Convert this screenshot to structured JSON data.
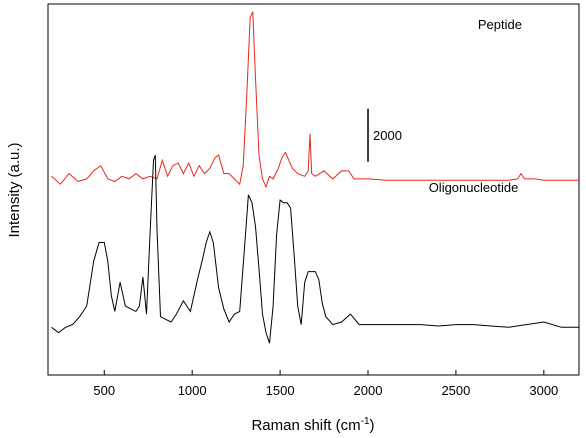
{
  "chart_data": {
    "type": "line",
    "xlabel": "Raman shift (cm",
    "xlabel_sup": "-1",
    "xlabel_suffix": ")",
    "ylabel": "Intensity (a.u.)",
    "xlim": [
      180,
      3200
    ],
    "ylim": [
      0,
      14000
    ],
    "x_ticks": [
      500,
      1000,
      1500,
      2000,
      2500,
      3000
    ],
    "x_tick_labels": [
      "500",
      "1000",
      "1500",
      "2000",
      "2500",
      "3000"
    ],
    "scale_bar": {
      "value": 2000,
      "label": "2000",
      "x": 2000,
      "y_bottom": 8050
    },
    "grid": false,
    "colors": {
      "peptide": "#e8281e",
      "oligonucleotide": "#000000",
      "axes": "#000000"
    },
    "series": [
      {
        "name": "Peptide",
        "label_position": {
          "x": 2750,
          "y": 13050
        },
        "x": [
          200,
          250,
          300,
          350,
          400,
          440,
          480,
          520,
          560,
          600,
          640,
          680,
          720,
          760,
          800,
          830,
          860,
          890,
          920,
          950,
          980,
          1010,
          1040,
          1070,
          1100,
          1130,
          1150,
          1180,
          1210,
          1240,
          1270,
          1290,
          1310,
          1330,
          1345,
          1360,
          1380,
          1400,
          1420,
          1440,
          1460,
          1490,
          1510,
          1530,
          1550,
          1570,
          1600,
          1640,
          1660,
          1670,
          1680,
          1700,
          1750,
          1800,
          1850,
          1890,
          1920,
          1960,
          2000,
          2100,
          2200,
          2300,
          2400,
          2500,
          2600,
          2700,
          2800,
          2850,
          2870,
          2890,
          2950,
          3000,
          3100,
          3200
        ],
        "values": [
          7500,
          7200,
          7600,
          7300,
          7400,
          7700,
          7900,
          7400,
          7300,
          7500,
          7400,
          7600,
          7400,
          7500,
          7400,
          8100,
          7500,
          7900,
          8000,
          7600,
          8000,
          7500,
          7900,
          7600,
          7800,
          8200,
          8300,
          7600,
          7600,
          7400,
          7200,
          7900,
          10500,
          13500,
          13700,
          11200,
          8300,
          7400,
          7100,
          7500,
          7400,
          7800,
          8200,
          8400,
          8100,
          7800,
          7600,
          7500,
          7700,
          9100,
          7600,
          7500,
          7700,
          7400,
          7700,
          7700,
          7400,
          7400,
          7400,
          7350,
          7350,
          7350,
          7350,
          7350,
          7350,
          7350,
          7350,
          7400,
          7600,
          7400,
          7400,
          7350,
          7350,
          7350
        ]
      },
      {
        "name": "Oligonucleotide",
        "label_position": {
          "x": 2600,
          "y": 6900
        },
        "x": [
          200,
          240,
          280,
          320,
          360,
          400,
          440,
          470,
          500,
          520,
          540,
          560,
          590,
          620,
          650,
          680,
          700,
          720,
          740,
          760,
          780,
          790,
          800,
          820,
          850,
          880,
          910,
          950,
          990,
          1030,
          1060,
          1080,
          1100,
          1120,
          1150,
          1180,
          1210,
          1240,
          1270,
          1300,
          1320,
          1340,
          1360,
          1380,
          1400,
          1420,
          1440,
          1460,
          1480,
          1500,
          1520,
          1540,
          1560,
          1580,
          1600,
          1620,
          1640,
          1660,
          1680,
          1700,
          1720,
          1740,
          1760,
          1800,
          1850,
          1900,
          1950,
          2000,
          2100,
          2200,
          2300,
          2400,
          2500,
          2600,
          2700,
          2800,
          2900,
          3000,
          3100,
          3200
        ],
        "values": [
          1800,
          1600,
          1800,
          1900,
          2200,
          2600,
          4300,
          5000,
          5000,
          4300,
          3000,
          2400,
          3500,
          2600,
          2500,
          2400,
          2600,
          3700,
          2300,
          5300,
          8100,
          8300,
          5500,
          2200,
          2100,
          2000,
          2300,
          2800,
          2400,
          3600,
          4400,
          5000,
          5400,
          5000,
          3300,
          2500,
          2000,
          2300,
          2400,
          5000,
          6800,
          6500,
          5600,
          4000,
          2300,
          1600,
          1200,
          2600,
          5300,
          6600,
          6500,
          6500,
          6300,
          4500,
          2600,
          1900,
          3500,
          3900,
          3900,
          3900,
          3600,
          2700,
          2200,
          1900,
          2000,
          2300,
          1900,
          1900,
          1900,
          1900,
          1900,
          1850,
          1900,
          1900,
          1850,
          1800,
          1900,
          2000,
          1800,
          1800
        ]
      }
    ]
  }
}
